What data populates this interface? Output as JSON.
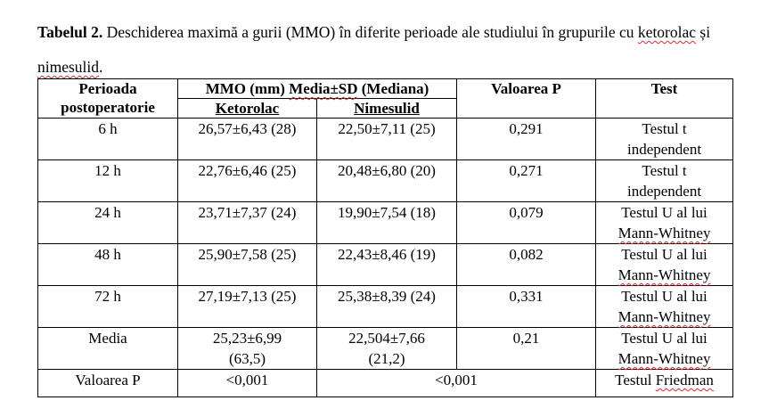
{
  "caption": {
    "label": "Tabelul 2.",
    "text_part1": " Deschiderea maximă a gurii (MMO) în diferite perioade ale studiului în grupurile cu ",
    "word_ketorolac": "ketorolac",
    "text_part2": " și ",
    "word_nimesulid": "nimesulid",
    "text_part3": "."
  },
  "table": {
    "headers": {
      "period": "Perioada postoperatorie",
      "mmo_prefix": "MMO (mm) ",
      "mmo_media_sd": "Media±SD",
      "mmo_suffix": " (Mediana)",
      "p_value": "Valoarea P",
      "test": "Test",
      "ketorolac": "Ketorolac",
      "nimesulid": "Nimesulid"
    },
    "rows": [
      {
        "period": "6 h",
        "ketorolac": "26,57±6,43 (28)",
        "nimesulid": "22,50±7,11 (25)",
        "p": "0,291",
        "test_line1": "Testul t",
        "test_line2": "independent"
      },
      {
        "period": "12 h",
        "ketorolac": "22,76±6,46 (25)",
        "nimesulid": "20,48±6,80 (20)",
        "p": "0,271",
        "test_line1": "Testul t",
        "test_line2": "independent"
      },
      {
        "period": "24 h",
        "ketorolac": "23,71±7,37 (24)",
        "nimesulid": "19,90±7,54 (18)",
        "p": "0,079",
        "test_line1": "Testul U al lui",
        "test_line2": "Mann-Whitney"
      },
      {
        "period": "48 h",
        "ketorolac": "25,90±7,58 (25)",
        "nimesulid": "22,43±8,46 (19)",
        "p": "0,082",
        "test_line1": "Testul U al lui",
        "test_line2": "Mann-Whitney"
      },
      {
        "period": "72 h",
        "ketorolac": "27,19±7,13 (25)",
        "nimesulid": "25,38±8,39 (24)",
        "p": "0,331",
        "test_line1": "Testul U al lui",
        "test_line2": "Mann-Whitney"
      }
    ],
    "media_row": {
      "period": "Media",
      "ketorolac_line1": "25,23±6,99",
      "ketorolac_line2": "(63,5)",
      "nimesulid_line1": "22,504±7,66",
      "nimesulid_line2": "(21,2)",
      "p": "0,21",
      "test_line1": "Testul U al lui",
      "test_line2": "Mann-Whitney"
    },
    "p_row": {
      "label": "Valoarea P",
      "ketorolac": "<0,001",
      "nimesulid_p": "<0,001",
      "test_prefix": "Testul ",
      "test_name": "Friedman"
    }
  }
}
